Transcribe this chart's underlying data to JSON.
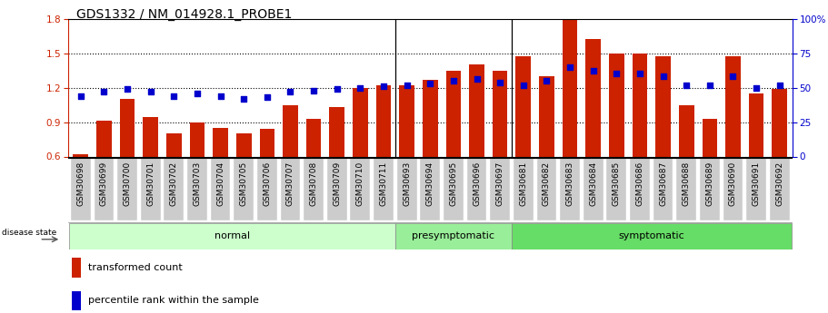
{
  "title": "GDS1332 / NM_014928.1_PROBE1",
  "categories": [
    "GSM30698",
    "GSM30699",
    "GSM30700",
    "GSM30701",
    "GSM30702",
    "GSM30703",
    "GSM30704",
    "GSM30705",
    "GSM30706",
    "GSM30707",
    "GSM30708",
    "GSM30709",
    "GSM30710",
    "GSM30711",
    "GSM30693",
    "GSM30694",
    "GSM30695",
    "GSM30696",
    "GSM30697",
    "GSM30681",
    "GSM30682",
    "GSM30683",
    "GSM30684",
    "GSM30685",
    "GSM30686",
    "GSM30687",
    "GSM30688",
    "GSM30689",
    "GSM30690",
    "GSM30691",
    "GSM30692"
  ],
  "transformed_count": [
    0.62,
    0.91,
    1.1,
    0.94,
    0.8,
    0.9,
    0.85,
    0.8,
    0.84,
    1.05,
    0.93,
    1.03,
    1.2,
    1.22,
    1.22,
    1.27,
    1.35,
    1.4,
    1.35,
    1.47,
    1.3,
    1.8,
    1.62,
    1.5,
    1.5,
    1.47,
    1.05,
    0.93,
    1.47,
    1.15,
    1.19
  ],
  "percentile_rank": [
    44,
    47,
    49,
    47,
    44,
    46,
    44,
    42,
    43,
    47,
    48,
    49,
    50,
    51,
    52,
    53,
    55,
    56,
    54,
    52,
    55,
    65,
    62,
    60,
    60,
    58,
    52,
    52,
    58,
    50,
    52
  ],
  "groups": [
    {
      "name": "normal",
      "start": 0,
      "end": 13,
      "color": "#ccffcc"
    },
    {
      "name": "presymptomatic",
      "start": 14,
      "end": 18,
      "color": "#99ee99"
    },
    {
      "name": "symptomatic",
      "start": 19,
      "end": 30,
      "color": "#66dd66"
    }
  ],
  "ylim_left": [
    0.6,
    1.8
  ],
  "ylim_right": [
    0,
    100
  ],
  "yticks_left": [
    0.6,
    0.9,
    1.2,
    1.5,
    1.8
  ],
  "yticks_right": [
    0,
    25,
    50,
    75,
    100
  ],
  "bar_color": "#cc2200",
  "scatter_color": "#0000cc",
  "hgrid_values": [
    0.9,
    1.2,
    1.5
  ],
  "separators": [
    14,
    19
  ],
  "title_fontsize": 10,
  "tick_fontsize": 6.5,
  "group_fontsize": 8,
  "legend_fontsize": 8,
  "xtick_bg_color": "#cccccc",
  "xtick_box_width": 0.85,
  "right_ytick_labels": [
    "0",
    "25",
    "50",
    "75",
    "100%"
  ]
}
